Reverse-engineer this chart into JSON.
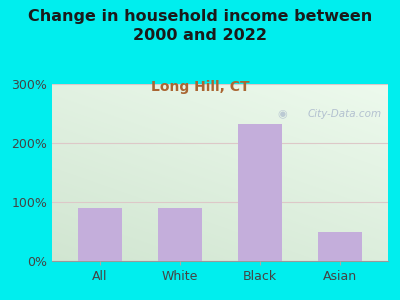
{
  "title": "Change in household income between\n2000 and 2022",
  "subtitle": "Long Hill, CT",
  "categories": [
    "All",
    "White",
    "Black",
    "Asian"
  ],
  "values": [
    90,
    90,
    232,
    50
  ],
  "bar_color": "#C4AEDB",
  "background_color": "#00EEEE",
  "plot_bg_color_topleft": "#ddeedd",
  "plot_bg_color_topright": "#f8fff8",
  "plot_bg_color_bottom": "#eef8ee",
  "ylim": [
    0,
    300
  ],
  "yticks": [
    0,
    100,
    200,
    300
  ],
  "ytick_labels": [
    "0%",
    "100%",
    "200%",
    "300%"
  ],
  "title_fontsize": 11.5,
  "subtitle_fontsize": 10,
  "subtitle_color": "#aa6633",
  "grid_color": "#ddc8c8",
  "watermark": "City-Data.com",
  "watermark_color": "#aab8cc"
}
